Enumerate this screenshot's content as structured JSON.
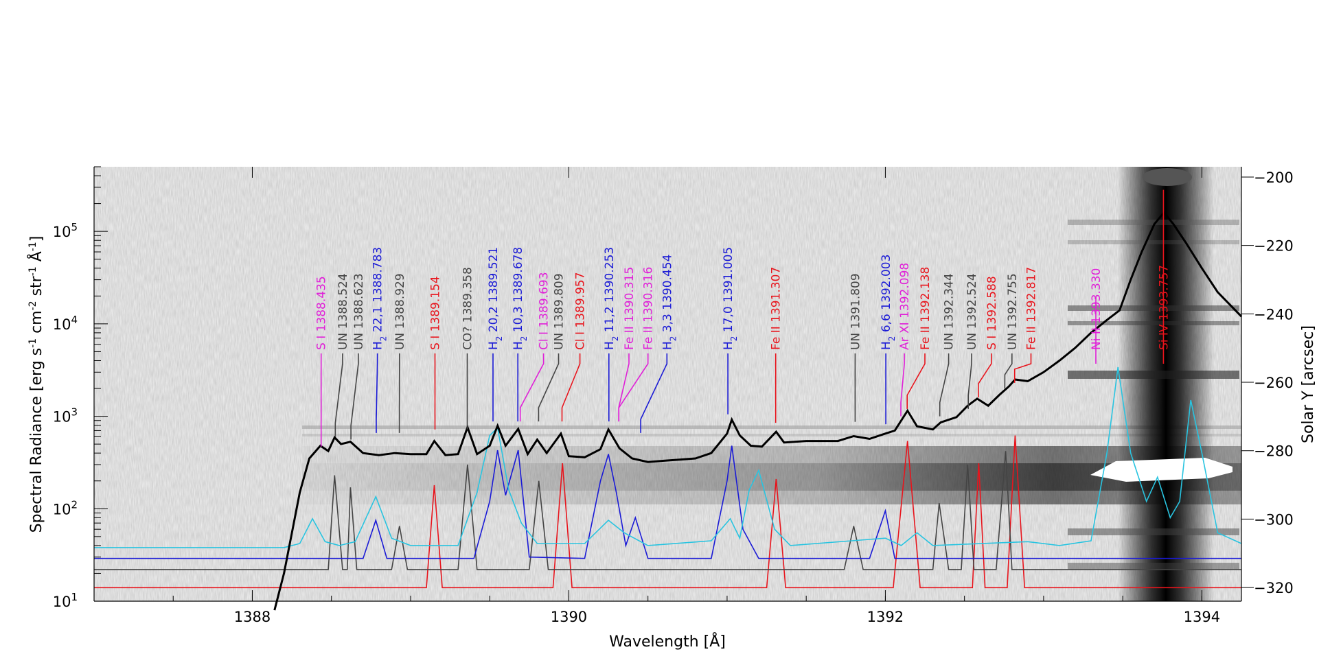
{
  "chart_data": {
    "type": "line",
    "xlabel": "Wavelength [Å]",
    "ylabel_left_parts": [
      "Spectral Radiance [erg s",
      "-1",
      " cm",
      "-2",
      " str",
      "-1",
      " Å",
      "-1",
      "]"
    ],
    "ylabel_right": "Solar Y [arcsec]",
    "xlim": [
      1387.0,
      1394.25
    ],
    "ylim_left": [
      10,
      500000
    ],
    "y_scale_left": "log",
    "ylim_right": [
      -324,
      -197
    ],
    "x_ticks": [
      1388,
      1390,
      1392,
      1394
    ],
    "y_ticks_left": [
      {
        "value": 10,
        "base": "10",
        "exp": "1"
      },
      {
        "value": 100,
        "base": "10",
        "exp": "2"
      },
      {
        "value": 1000,
        "base": "10",
        "exp": "3"
      },
      {
        "value": 10000,
        "base": "10",
        "exp": "4"
      },
      {
        "value": 100000,
        "base": "10",
        "exp": "5"
      }
    ],
    "y_ticks_right": [
      -200,
      -220,
      -240,
      -260,
      -280,
      -300,
      -320
    ],
    "background": "grayscale spectrogram image (solar Y vs wavelength)",
    "colors": {
      "red": "#e8141c",
      "black": "#000000",
      "gray": "#444444",
      "blue": "#1a1ad6",
      "magenta": "#e020d8",
      "cyan": "#29c4e0"
    },
    "series": [
      {
        "color": "#000000",
        "style": "observed spectrum",
        "points": [
          [
            1388.14,
            8
          ],
          [
            1388.2,
            20
          ],
          [
            1388.3,
            150
          ],
          [
            1388.36,
            350
          ],
          [
            1388.43,
            480
          ],
          [
            1388.48,
            420
          ],
          [
            1388.52,
            590
          ],
          [
            1388.56,
            500
          ],
          [
            1388.62,
            530
          ],
          [
            1388.7,
            400
          ],
          [
            1388.8,
            380
          ],
          [
            1388.9,
            400
          ],
          [
            1389.0,
            390
          ],
          [
            1389.1,
            390
          ],
          [
            1389.15,
            540
          ],
          [
            1389.22,
            380
          ],
          [
            1389.3,
            390
          ],
          [
            1389.36,
            760
          ],
          [
            1389.42,
            390
          ],
          [
            1389.5,
            480
          ],
          [
            1389.55,
            790
          ],
          [
            1389.6,
            480
          ],
          [
            1389.68,
            730
          ],
          [
            1389.74,
            390
          ],
          [
            1389.8,
            560
          ],
          [
            1389.86,
            400
          ],
          [
            1389.95,
            650
          ],
          [
            1390.0,
            370
          ],
          [
            1390.1,
            360
          ],
          [
            1390.2,
            440
          ],
          [
            1390.25,
            720
          ],
          [
            1390.32,
            450
          ],
          [
            1390.4,
            350
          ],
          [
            1390.5,
            320
          ],
          [
            1390.6,
            330
          ],
          [
            1390.7,
            340
          ],
          [
            1390.8,
            350
          ],
          [
            1390.9,
            400
          ],
          [
            1391.0,
            650
          ],
          [
            1391.03,
            920
          ],
          [
            1391.08,
            620
          ],
          [
            1391.15,
            480
          ],
          [
            1391.22,
            470
          ],
          [
            1391.31,
            680
          ],
          [
            1391.36,
            520
          ],
          [
            1391.5,
            540
          ],
          [
            1391.7,
            540
          ],
          [
            1391.8,
            610
          ],
          [
            1391.9,
            570
          ],
          [
            1392.0,
            650
          ],
          [
            1392.06,
            700
          ],
          [
            1392.14,
            1150
          ],
          [
            1392.2,
            780
          ],
          [
            1392.3,
            720
          ],
          [
            1392.35,
            860
          ],
          [
            1392.45,
            980
          ],
          [
            1392.52,
            1300
          ],
          [
            1392.58,
            1550
          ],
          [
            1392.65,
            1300
          ],
          [
            1392.72,
            1700
          ],
          [
            1392.78,
            2100
          ],
          [
            1392.82,
            2500
          ],
          [
            1392.9,
            2400
          ],
          [
            1393.0,
            3000
          ],
          [
            1393.1,
            4000
          ],
          [
            1393.2,
            5500
          ],
          [
            1393.3,
            8000
          ],
          [
            1393.4,
            11000
          ],
          [
            1393.48,
            14000
          ],
          [
            1393.55,
            30000
          ],
          [
            1393.62,
            60000
          ],
          [
            1393.7,
            120000
          ],
          [
            1393.76,
            160000
          ],
          [
            1393.82,
            120000
          ],
          [
            1393.9,
            75000
          ],
          [
            1394.0,
            40000
          ],
          [
            1394.1,
            22000
          ],
          [
            1394.25,
            12000
          ]
        ]
      },
      {
        "color": "#29c4e0",
        "style": "fitted profile",
        "points": [
          [
            1387.0,
            38
          ],
          [
            1388.2,
            38
          ],
          [
            1388.3,
            42
          ],
          [
            1388.38,
            78
          ],
          [
            1388.46,
            44
          ],
          [
            1388.55,
            40
          ],
          [
            1388.65,
            44
          ],
          [
            1388.78,
            135
          ],
          [
            1388.88,
            48
          ],
          [
            1389.0,
            40
          ],
          [
            1389.3,
            40
          ],
          [
            1389.42,
            150
          ],
          [
            1389.5,
            620
          ],
          [
            1389.55,
            750
          ],
          [
            1389.62,
            160
          ],
          [
            1389.7,
            70
          ],
          [
            1389.8,
            42
          ],
          [
            1390.1,
            42
          ],
          [
            1390.25,
            75
          ],
          [
            1390.35,
            55
          ],
          [
            1390.5,
            40
          ],
          [
            1390.9,
            45
          ],
          [
            1391.02,
            78
          ],
          [
            1391.08,
            48
          ],
          [
            1391.14,
            160
          ],
          [
            1391.2,
            260
          ],
          [
            1391.3,
            60
          ],
          [
            1391.4,
            40
          ],
          [
            1392.0,
            48
          ],
          [
            1392.1,
            40
          ],
          [
            1392.2,
            55
          ],
          [
            1392.3,
            40
          ],
          [
            1392.9,
            44
          ],
          [
            1393.1,
            40
          ],
          [
            1393.3,
            45
          ],
          [
            1393.4,
            400
          ],
          [
            1393.47,
            3400
          ],
          [
            1393.55,
            400
          ],
          [
            1393.65,
            120
          ],
          [
            1393.72,
            220
          ],
          [
            1393.8,
            80
          ],
          [
            1393.86,
            120
          ],
          [
            1393.93,
            1500
          ],
          [
            1394.0,
            400
          ],
          [
            1394.1,
            55
          ],
          [
            1394.25,
            42
          ]
        ]
      },
      {
        "color": "#1a1ad6",
        "style": "fitted profile",
        "points": [
          [
            1387.0,
            29
          ],
          [
            1388.7,
            29
          ],
          [
            1388.78,
            75
          ],
          [
            1388.85,
            29
          ],
          [
            1389.4,
            29
          ],
          [
            1389.5,
            120
          ],
          [
            1389.55,
            430
          ],
          [
            1389.6,
            140
          ],
          [
            1389.68,
            430
          ],
          [
            1389.75,
            30
          ],
          [
            1390.1,
            29
          ],
          [
            1390.2,
            200
          ],
          [
            1390.25,
            390
          ],
          [
            1390.3,
            150
          ],
          [
            1390.36,
            40
          ],
          [
            1390.42,
            80
          ],
          [
            1390.5,
            29
          ],
          [
            1390.9,
            29
          ],
          [
            1391.0,
            200
          ],
          [
            1391.03,
            480
          ],
          [
            1391.1,
            60
          ],
          [
            1391.2,
            29
          ],
          [
            1391.9,
            29
          ],
          [
            1392.0,
            95
          ],
          [
            1392.06,
            29
          ],
          [
            1394.25,
            29
          ]
        ]
      },
      {
        "color": "#444444",
        "style": "fitted profile",
        "points": [
          [
            1387.0,
            22
          ],
          [
            1388.48,
            22
          ],
          [
            1388.52,
            230
          ],
          [
            1388.57,
            22
          ],
          [
            1388.6,
            22
          ],
          [
            1388.62,
            170
          ],
          [
            1388.66,
            22
          ],
          [
            1388.88,
            22
          ],
          [
            1388.93,
            65
          ],
          [
            1388.98,
            22
          ],
          [
            1389.3,
            22
          ],
          [
            1389.36,
            300
          ],
          [
            1389.42,
            22
          ],
          [
            1389.75,
            22
          ],
          [
            1389.81,
            200
          ],
          [
            1389.87,
            22
          ],
          [
            1391.74,
            22
          ],
          [
            1391.8,
            65
          ],
          [
            1391.86,
            22
          ],
          [
            1392.3,
            22
          ],
          [
            1392.34,
            115
          ],
          [
            1392.4,
            22
          ],
          [
            1392.48,
            22
          ],
          [
            1392.52,
            300
          ],
          [
            1392.56,
            22
          ],
          [
            1392.7,
            22
          ],
          [
            1392.76,
            420
          ],
          [
            1392.8,
            22
          ],
          [
            1394.25,
            22
          ]
        ]
      },
      {
        "color": "#e8141c",
        "style": "fitted profile",
        "points": [
          [
            1387.0,
            14
          ],
          [
            1389.1,
            14
          ],
          [
            1389.15,
            180
          ],
          [
            1389.2,
            14
          ],
          [
            1389.9,
            14
          ],
          [
            1389.96,
            310
          ],
          [
            1390.02,
            14
          ],
          [
            1391.25,
            14
          ],
          [
            1391.31,
            210
          ],
          [
            1391.37,
            14
          ],
          [
            1392.05,
            14
          ],
          [
            1392.14,
            540
          ],
          [
            1392.22,
            14
          ],
          [
            1392.55,
            14
          ],
          [
            1392.59,
            310
          ],
          [
            1392.63,
            14
          ],
          [
            1392.77,
            14
          ],
          [
            1392.82,
            620
          ],
          [
            1392.88,
            14
          ],
          [
            1394.25,
            14
          ]
        ]
      }
    ],
    "line_ids": [
      {
        "text": "S I 1388.435",
        "color": "#e020d8",
        "x": 1388.435,
        "x_label": 1388.435,
        "y_marker": 470
      },
      {
        "text": "UN 1388.524",
        "color": "#444444",
        "x": 1388.524,
        "x_label": 1388.57,
        "y_marker": 600
      },
      {
        "text": "UN 1388.623",
        "color": "#444444",
        "x": 1388.623,
        "x_label": 1388.67,
        "y_marker": 560
      },
      {
        "text": "H",
        "sub": "2",
        "text2": " 22,1 1388.783",
        "color": "#1a1ad6",
        "x": 1388.783,
        "x_label": 1388.79,
        "y_marker": 660
      },
      {
        "text": "UN 1388.929",
        "color": "#444444",
        "x": 1388.929,
        "x_label": 1388.93,
        "y_marker": 660
      },
      {
        "text": "S I 1389.154",
        "color": "#e8141c",
        "x": 1389.154,
        "x_label": 1389.154,
        "y_marker": 720
      },
      {
        "text": "CO? 1389.358",
        "color": "#444444",
        "x": 1389.358,
        "x_label": 1389.358,
        "y_marker": 720
      },
      {
        "text": "H",
        "sub": "2",
        "text2": " 20,2 1389.521",
        "color": "#1a1ad6",
        "x": 1389.521,
        "x_label": 1389.521,
        "y_marker": 880
      },
      {
        "text": "H",
        "sub": "2",
        "text2": " 10,3 1389.678",
        "color": "#1a1ad6",
        "x": 1389.678,
        "x_label": 1389.678,
        "y_marker": 880
      },
      {
        "text": "Cl I 1389.693",
        "color": "#e020d8",
        "x": 1389.693,
        "x_label": 1389.84,
        "y_marker": 880
      },
      {
        "text": "UN 1389.809",
        "color": "#444444",
        "x": 1389.809,
        "x_label": 1389.935,
        "y_marker": 880
      },
      {
        "text": "Cl I 1389.957",
        "color": "#e8141c",
        "x": 1389.957,
        "x_label": 1390.07,
        "y_marker": 880
      },
      {
        "text": "H",
        "sub": "2",
        "text2": " 11,2 1390.253",
        "color": "#1a1ad6",
        "x": 1390.253,
        "x_label": 1390.253,
        "y_marker": 880
      },
      {
        "text": "Fe II 1390.315",
        "color": "#e020d8",
        "x": 1390.315,
        "x_label": 1390.38,
        "y_marker": 880
      },
      {
        "text": "Fe II 1390.316",
        "color": "#e020d8",
        "x": 1390.316,
        "x_label": 1390.5,
        "y_marker": 880
      },
      {
        "text": "H",
        "sub": "2",
        "text2": " 3,3 1390.454",
        "color": "#1a1ad6",
        "x": 1390.454,
        "x_label": 1390.62,
        "y_marker": 660
      },
      {
        "text": "H",
        "sub": "2",
        "text2": " 17,0 1391.005",
        "color": "#1a1ad6",
        "x": 1391.005,
        "x_label": 1391.005,
        "y_marker": 1050
      },
      {
        "text": "Fe II 1391.307",
        "color": "#e8141c",
        "x": 1391.307,
        "x_label": 1391.307,
        "y_marker": 850
      },
      {
        "text": "UN 1391.809",
        "color": "#444444",
        "x": 1391.809,
        "x_label": 1391.809,
        "y_marker": 870
      },
      {
        "text": "H",
        "sub": "2",
        "text2": " 6,6 1392.003",
        "color": "#1a1ad6",
        "x": 1392.003,
        "x_label": 1392.003,
        "y_marker": 820
      },
      {
        "text": "Ar XI 1392.098",
        "color": "#e020d8",
        "x": 1392.098,
        "x_label": 1392.12,
        "y_marker": 1000
      },
      {
        "text": "Fe II 1392.138",
        "color": "#e8141c",
        "x": 1392.138,
        "x_label": 1392.25,
        "y_marker": 1200
      },
      {
        "text": "UN 1392.344",
        "color": "#444444",
        "x": 1392.344,
        "x_label": 1392.4,
        "y_marker": 1000
      },
      {
        "text": "UN 1392.524",
        "color": "#444444",
        "x": 1392.524,
        "x_label": 1392.545,
        "y_marker": 1200
      },
      {
        "text": "S I 1392.588",
        "color": "#e8141c",
        "x": 1392.588,
        "x_label": 1392.67,
        "y_marker": 1600
      },
      {
        "text": "UN 1392.755",
        "color": "#444444",
        "x": 1392.755,
        "x_label": 1392.8,
        "y_marker": 2000
      },
      {
        "text": "Fe II 1392.817",
        "color": "#e8141c",
        "x": 1392.817,
        "x_label": 1392.92,
        "y_marker": 2300
      },
      {
        "text": "Ni II 1393.330",
        "color": "#e020d8",
        "x": 1393.33,
        "x_label": 1393.33,
        "y_marker": 14000
      },
      {
        "text": "Si IV 1393.757",
        "color": "#e8141c",
        "x": 1393.757,
        "x_label": 1393.757,
        "y_marker": 200000
      }
    ]
  }
}
